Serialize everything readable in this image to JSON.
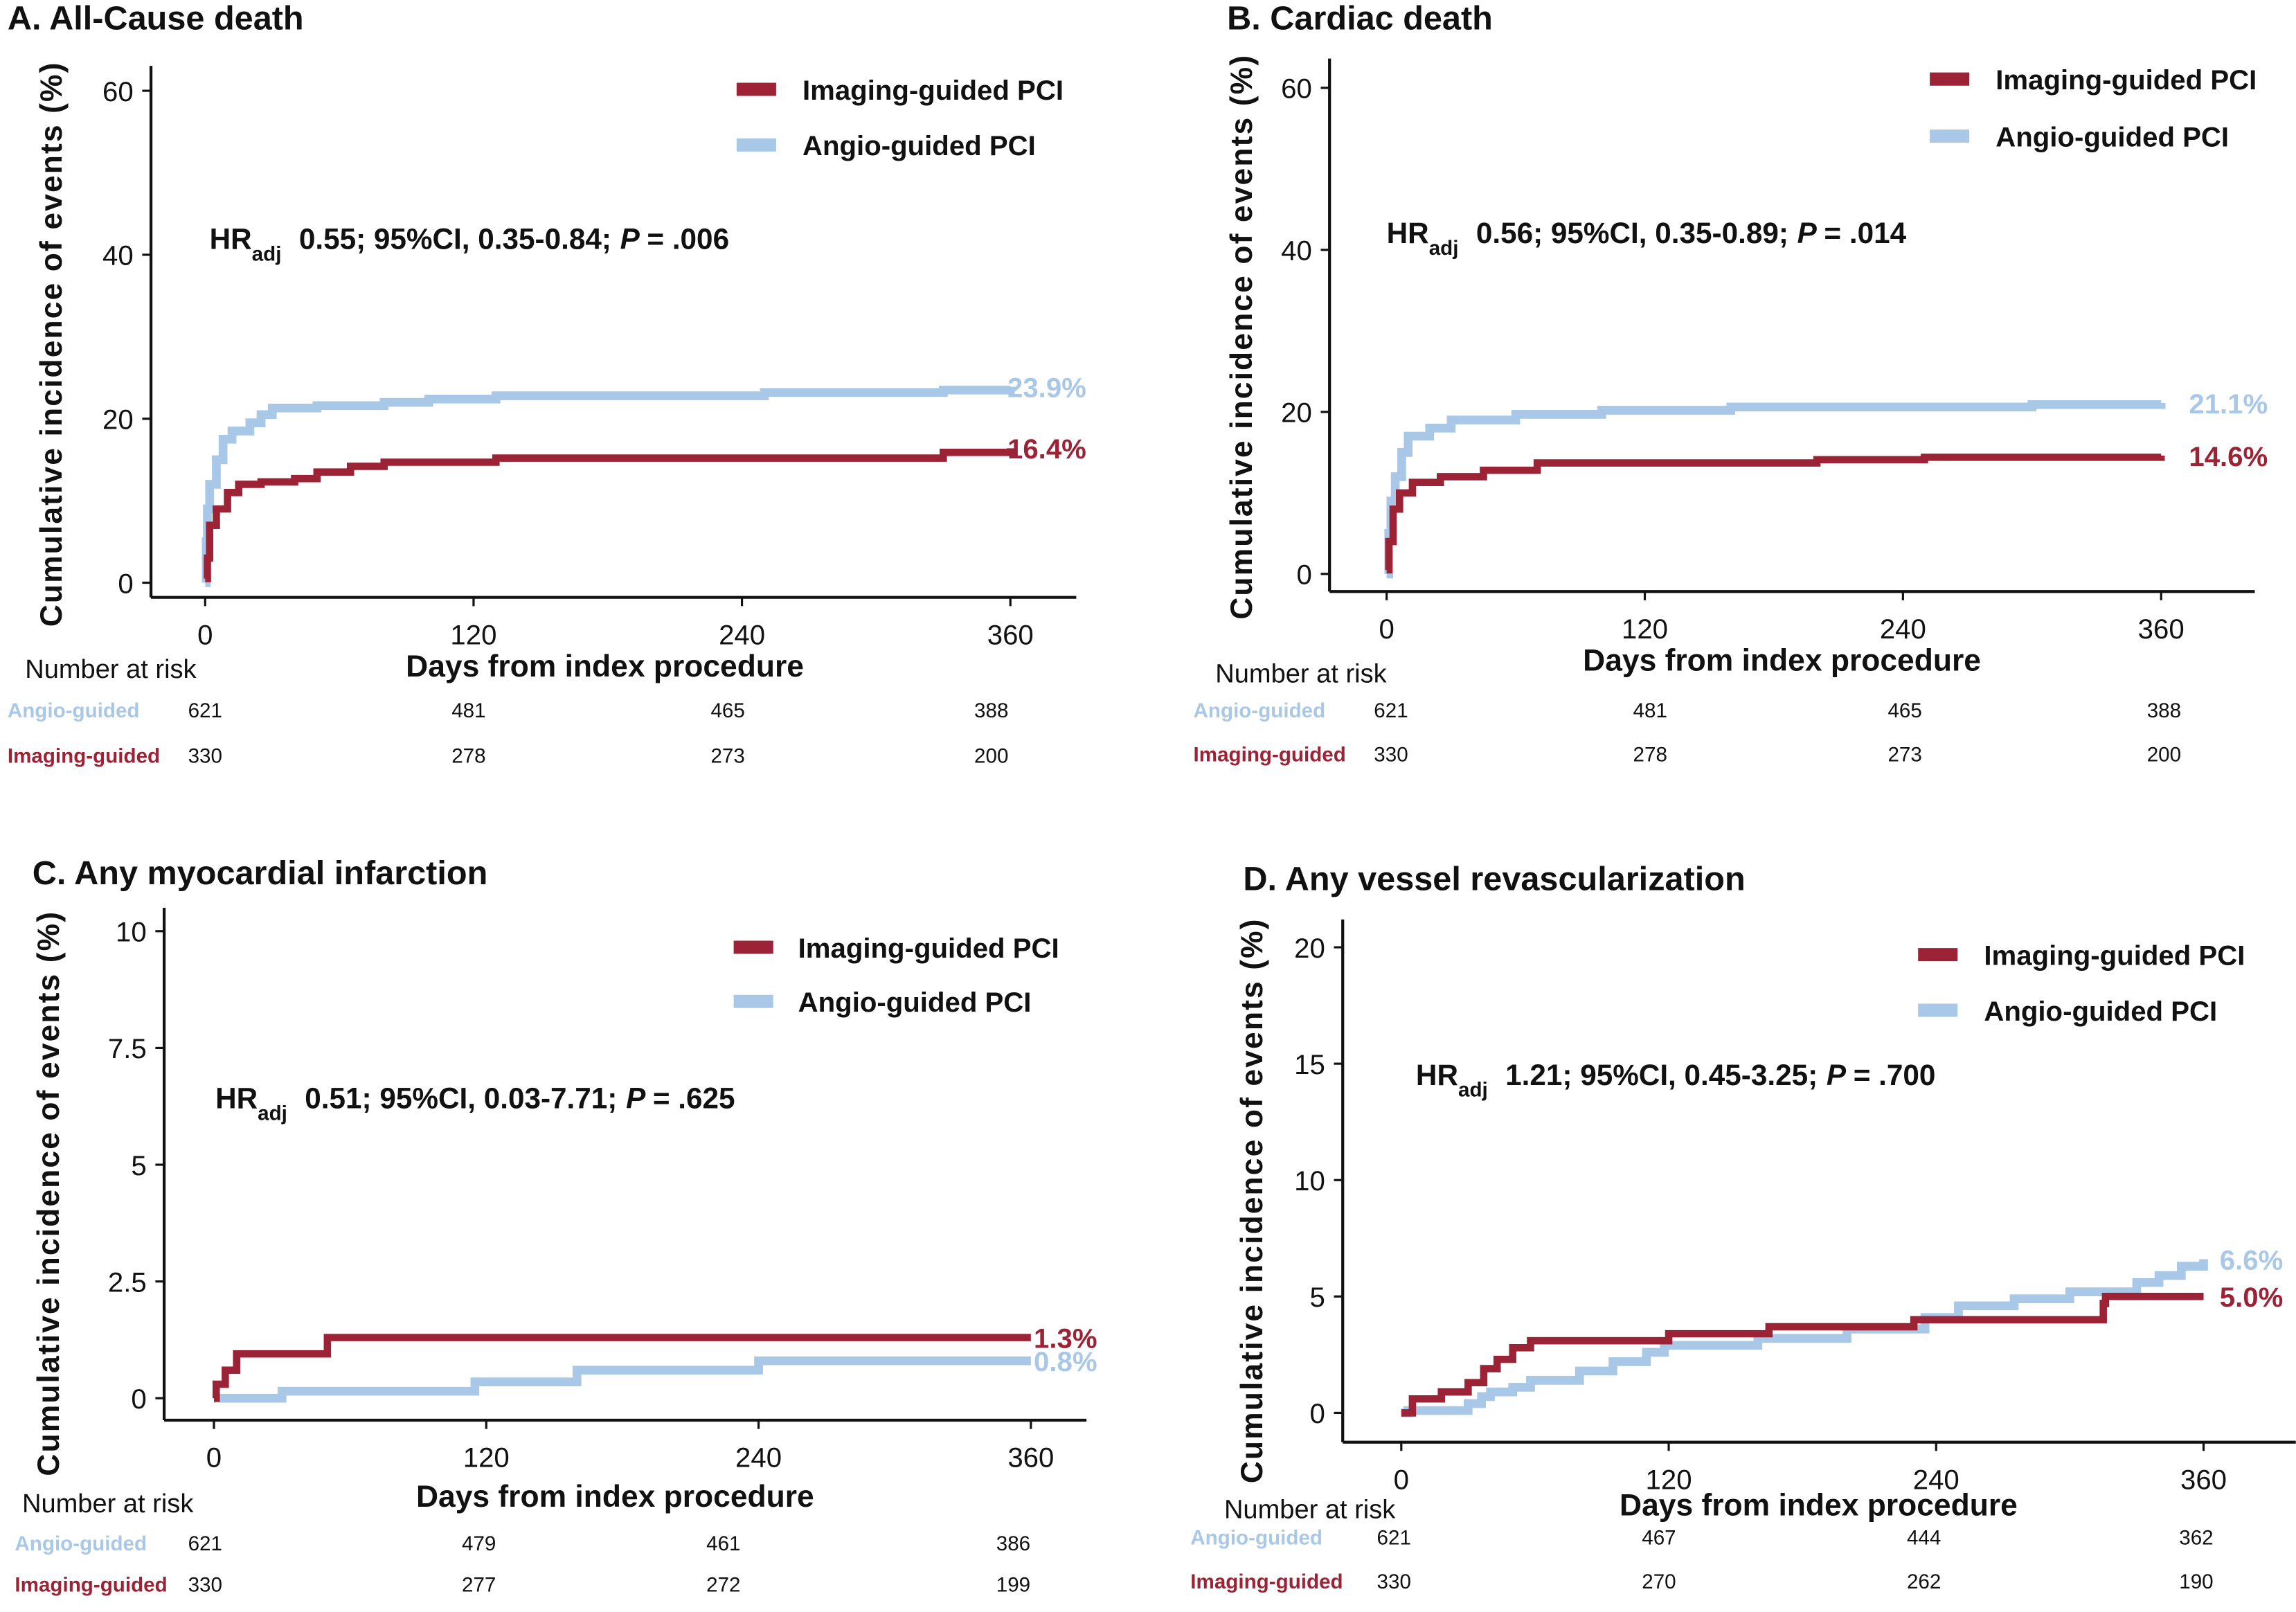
{
  "colors": {
    "imaging": "#9b2335",
    "angio": "#a9c8e8"
  },
  "chart_data": [
    {
      "type": "line",
      "title": "A. All-Cause death",
      "xlabel": "Days from index procedure",
      "ylabel": "Cumulative incidence of events (%)",
      "xticks": [
        0,
        120,
        240,
        360
      ],
      "yticks": [
        "0",
        "20",
        "40",
        "60"
      ],
      "ylim": [
        0,
        60
      ],
      "xlim": [
        0,
        360
      ],
      "legend": {
        "placement": "top-right",
        "items": [
          "Imaging-guided PCI",
          "Angio-guided PCI"
        ]
      },
      "hr": {
        "prefix": "HR",
        "sub": "adj",
        "text": "0.55; 95%CI, 0.35-0.84;",
        "p": "P",
        "pval": "= .006"
      },
      "series": [
        {
          "name": "Imaging-guided PCI",
          "end_label": "16.4%",
          "points": [
            [
              0,
              0.5
            ],
            [
              1,
              3
            ],
            [
              2,
              7
            ],
            [
              5,
              9
            ],
            [
              10,
              11
            ],
            [
              15,
              12
            ],
            [
              25,
              12.3
            ],
            [
              40,
              12.7
            ],
            [
              50,
              13.5
            ],
            [
              65,
              14.2
            ],
            [
              80,
              14.7
            ],
            [
              130,
              15.2
            ],
            [
              330,
              15.9
            ],
            [
              360,
              16.4
            ]
          ]
        },
        {
          "name": "Angio-guided PCI",
          "end_label": "23.9%",
          "points": [
            [
              0,
              0
            ],
            [
              0.5,
              5
            ],
            [
              1,
              9
            ],
            [
              2,
              12
            ],
            [
              5,
              15
            ],
            [
              8,
              17.5
            ],
            [
              12,
              18.5
            ],
            [
              20,
              19.5
            ],
            [
              25,
              20.5
            ],
            [
              30,
              21.3
            ],
            [
              50,
              21.6
            ],
            [
              80,
              22
            ],
            [
              100,
              22.4
            ],
            [
              130,
              22.8
            ],
            [
              250,
              23.2
            ],
            [
              330,
              23.5
            ],
            [
              360,
              23.9
            ]
          ]
        }
      ],
      "risk_table": {
        "heading": "Number at risk",
        "rows": [
          {
            "label": "Angio-guided",
            "values": [
              "621",
              "481",
              "465",
              "388"
            ]
          },
          {
            "label": "Imaging-guided",
            "values": [
              "330",
              "278",
              "273",
              "200"
            ]
          }
        ]
      }
    },
    {
      "type": "line",
      "title": "B. Cardiac  death",
      "xlabel": "Days from index procedure",
      "ylabel": "Cumulative incidence of events (%)",
      "xticks": [
        0,
        120,
        240,
        360
      ],
      "yticks": [
        "0",
        "20",
        "40",
        "60"
      ],
      "ylim": [
        0,
        60
      ],
      "xlim": [
        0,
        360
      ],
      "legend": {
        "placement": "top-right",
        "items": [
          "Imaging-guided PCI",
          "Angio-guided PCI"
        ]
      },
      "hr": {
        "prefix": "HR",
        "sub": "adj",
        "text": "0.56; 95%CI, 0.35-0.89;",
        "p": "P",
        "pval": "= .014"
      },
      "series": [
        {
          "name": "Imaging-guided PCI",
          "end_label": "14.6%",
          "points": [
            [
              0,
              0.5
            ],
            [
              1,
              4
            ],
            [
              3,
              8
            ],
            [
              6,
              10
            ],
            [
              12,
              11.3
            ],
            [
              25,
              12
            ],
            [
              45,
              12.8
            ],
            [
              70,
              13.7
            ],
            [
              200,
              14.1
            ],
            [
              250,
              14.4
            ],
            [
              360,
              14.6
            ]
          ]
        },
        {
          "name": "Angio-guided PCI",
          "end_label": "21.1%",
          "points": [
            [
              0,
              0
            ],
            [
              1,
              5
            ],
            [
              2,
              9
            ],
            [
              4,
              12
            ],
            [
              7,
              15
            ],
            [
              10,
              17
            ],
            [
              20,
              18
            ],
            [
              30,
              19
            ],
            [
              60,
              19.7
            ],
            [
              100,
              20.2
            ],
            [
              160,
              20.6
            ],
            [
              300,
              20.9
            ],
            [
              360,
              21.1
            ]
          ]
        }
      ],
      "risk_table": {
        "heading": "Number at risk",
        "rows": [
          {
            "label": "Angio-guided",
            "values": [
              "621",
              "481",
              "465",
              "388"
            ]
          },
          {
            "label": "Imaging-guided",
            "values": [
              "330",
              "278",
              "273",
              "200"
            ]
          }
        ]
      }
    },
    {
      "type": "line",
      "title": "C. Any  myocardial  infarction",
      "xlabel": "Days from index procedure",
      "ylabel": "Cumulative incidence of events (%)",
      "xticks": [
        0,
        120,
        240,
        360
      ],
      "yticks": [
        "0",
        "2.5",
        "5",
        "7.5",
        "10"
      ],
      "ylim": [
        0,
        10
      ],
      "xlim": [
        0,
        360
      ],
      "legend": {
        "placement": "top-right",
        "items": [
          "Imaging-guided PCI",
          "Angio-guided PCI"
        ]
      },
      "hr": {
        "prefix": "HR",
        "sub": "adj",
        "text": "0.51; 95%CI, 0.03-7.71;",
        "p": "P",
        "pval": "= .625"
      },
      "series": [
        {
          "name": "Imaging-guided PCI",
          "end_label": "1.3%",
          "points": [
            [
              0,
              0
            ],
            [
              1,
              0.3
            ],
            [
              5,
              0.6
            ],
            [
              10,
              0.95
            ],
            [
              50,
              1.3
            ],
            [
              360,
              1.3
            ]
          ]
        },
        {
          "name": "Angio-guided PCI",
          "end_label": "0.8%",
          "points": [
            [
              0,
              0
            ],
            [
              30,
              0.15
            ],
            [
              115,
              0.35
            ],
            [
              160,
              0.6
            ],
            [
              240,
              0.8
            ],
            [
              360,
              0.8
            ]
          ]
        }
      ],
      "risk_table": {
        "heading": "Number at risk",
        "rows": [
          {
            "label": "Angio-guided",
            "values": [
              "621",
              "479",
              "461",
              "386"
            ]
          },
          {
            "label": "Imaging-guided",
            "values": [
              "330",
              "277",
              "272",
              "199"
            ]
          }
        ]
      }
    },
    {
      "type": "line",
      "title": "D. Any  vessel  revascularization",
      "xlabel": "Days from index procedure",
      "ylabel": "Cumulative incidence of events (%)",
      "xticks": [
        0,
        120,
        240,
        360
      ],
      "yticks": [
        "0",
        "5",
        "10",
        "15",
        "20"
      ],
      "ylim": [
        0,
        20
      ],
      "xlim": [
        0,
        360
      ],
      "legend": {
        "placement": "top-right",
        "items": [
          "Imaging-guided PCI",
          "Angio-guided PCI"
        ]
      },
      "hr": {
        "prefix": "HR",
        "sub": "adj",
        "text": "1.21; 95%CI, 0.45-3.25;",
        "p": "P",
        "pval": "= .700"
      },
      "series": [
        {
          "name": "Imaging-guided PCI",
          "end_label": "5.0%",
          "points": [
            [
              0,
              0
            ],
            [
              5,
              0.6
            ],
            [
              18,
              0.9
            ],
            [
              30,
              1.3
            ],
            [
              37,
              1.9
            ],
            [
              43,
              2.3
            ],
            [
              50,
              2.8
            ],
            [
              58,
              3.1
            ],
            [
              120,
              3.4
            ],
            [
              165,
              3.7
            ],
            [
              230,
              4.0
            ],
            [
              315,
              4.7
            ],
            [
              316,
              5.0
            ],
            [
              360,
              5.0
            ]
          ]
        },
        {
          "name": "Angio-guided PCI",
          "end_label": "6.6%",
          "points": [
            [
              0,
              0
            ],
            [
              3,
              0.1
            ],
            [
              30,
              0.4
            ],
            [
              36,
              0.7
            ],
            [
              40,
              0.9
            ],
            [
              50,
              1.1
            ],
            [
              58,
              1.4
            ],
            [
              80,
              1.8
            ],
            [
              95,
              2.2
            ],
            [
              110,
              2.6
            ],
            [
              118,
              2.9
            ],
            [
              160,
              3.2
            ],
            [
              200,
              3.6
            ],
            [
              235,
              4.1
            ],
            [
              250,
              4.6
            ],
            [
              275,
              4.9
            ],
            [
              300,
              5.2
            ],
            [
              330,
              5.6
            ],
            [
              340,
              5.9
            ],
            [
              350,
              6.3
            ],
            [
              360,
              6.6
            ]
          ]
        }
      ],
      "risk_table": {
        "heading": "Number at risk",
        "rows": [
          {
            "label": "Angio-guided",
            "values": [
              "621",
              "467",
              "444",
              "362"
            ]
          },
          {
            "label": "Imaging-guided",
            "values": [
              "330",
              "270",
              "262",
              "190"
            ]
          }
        ]
      }
    }
  ]
}
